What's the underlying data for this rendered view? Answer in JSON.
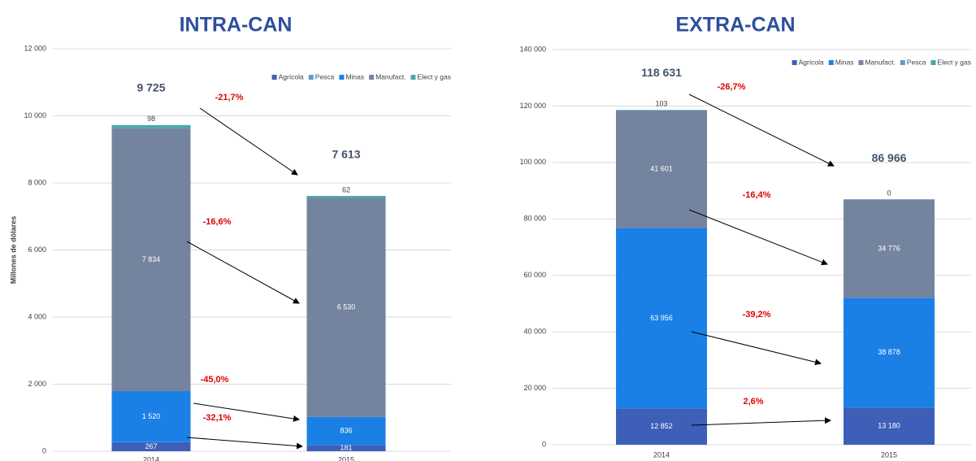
{
  "chart_data": [
    {
      "type": "stacked_bar",
      "title": "INTRA-CAN",
      "y_label": "Millones de dólares",
      "categories": [
        "2014",
        "2015"
      ],
      "series": [
        {
          "name": "Agrícola",
          "color": "#3d5fb8",
          "values": [
            267,
            181
          ],
          "label_position": "inside"
        },
        {
          "name": "Pesca",
          "color": "#5b9bd5",
          "values": [
            6,
            4
          ],
          "label_position": "none"
        },
        {
          "name": "Minas",
          "color": "#1a80e6",
          "values": [
            1520,
            836
          ],
          "value_labels": [
            "1 520",
            "836"
          ],
          "label_position": "inside"
        },
        {
          "name": "Manufact.",
          "color": "#74849f",
          "values": [
            7834,
            6530
          ],
          "value_labels": [
            "7 834",
            "6 530"
          ],
          "label_position": "inside"
        },
        {
          "name": "Elect y gas",
          "color": "#4aa6ad",
          "values": [
            98,
            62
          ],
          "label_position": "above"
        }
      ],
      "totals": {
        "values": [
          9725,
          7613
        ],
        "value_labels": [
          "9 725",
          "7 613"
        ]
      },
      "annotations": [
        "-21,7%",
        "-16,6%",
        "-45,0%",
        "-32,1%"
      ],
      "ylim": [
        0,
        12000
      ],
      "yticks": [
        0,
        {
          "value": 2000,
          "label": "2 000"
        },
        {
          "value": 4000,
          "label": "4 000"
        },
        {
          "value": 6000,
          "label": "6 000"
        },
        {
          "value": 8000,
          "label": "8 000"
        },
        {
          "value": 10000,
          "label": "10 000"
        },
        {
          "value": 12000,
          "label": "12 000"
        }
      ],
      "grid": true,
      "legend": "top-right"
    },
    {
      "type": "stacked_bar",
      "title": "EXTRA-CAN",
      "categories": [
        "2014",
        "2015"
      ],
      "series": [
        {
          "name": "Agrícola",
          "color": "#3d5fb8",
          "values": [
            12852,
            13180
          ],
          "value_labels": [
            "12 852",
            "13 180"
          ],
          "label_position": "inside"
        },
        {
          "name": "Minas",
          "color": "#1a80e6",
          "values": [
            63956,
            38878
          ],
          "value_labels": [
            "63 956",
            "38 878"
          ],
          "label_position": "inside"
        },
        {
          "name": "Manufact.",
          "color": "#74849f",
          "values": [
            41601,
            34776
          ],
          "value_labels": [
            "41 601",
            "34 776"
          ],
          "label_position": "inside"
        },
        {
          "name": "Pesca",
          "color": "#5b9bd5",
          "values": [
            119,
            132
          ],
          "label_position": "none"
        },
        {
          "name": "Elect y gas",
          "color": "#4aa6ad",
          "values": [
            103,
            0
          ],
          "label_position": "above"
        }
      ],
      "totals": {
        "values": [
          118631,
          86966
        ],
        "value_labels": [
          "118 631",
          "86 966"
        ]
      },
      "annotations": [
        "-26,7%",
        "-16,4%",
        "-39,2%",
        "2,6%"
      ],
      "ylim": [
        0,
        140000
      ],
      "yticks": [
        0,
        {
          "value": 20000,
          "label": "20 000"
        },
        {
          "value": 40000,
          "label": "40 000"
        },
        {
          "value": 60000,
          "label": "60 000"
        },
        {
          "value": 80000,
          "label": "80 000"
        },
        {
          "value": 100000,
          "label": "100 000"
        },
        {
          "value": 120000,
          "label": "120 000"
        },
        {
          "value": 140000,
          "label": "140 000"
        }
      ],
      "grid": true,
      "legend": "top-right"
    }
  ]
}
